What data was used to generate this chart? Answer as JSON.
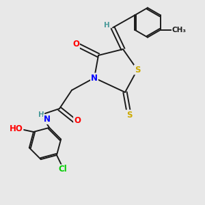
{
  "bg_color": "#e8e8e8",
  "bond_color": "#1a1a1a",
  "atom_colors": {
    "N": "#0000ff",
    "O": "#ff0000",
    "S": "#ccaa00",
    "Cl": "#00cc00",
    "C": "#1a1a1a",
    "H": "#4a9a9a"
  },
  "font_size_atoms": 8.5,
  "font_size_small": 7.5,
  "lw": 1.4
}
